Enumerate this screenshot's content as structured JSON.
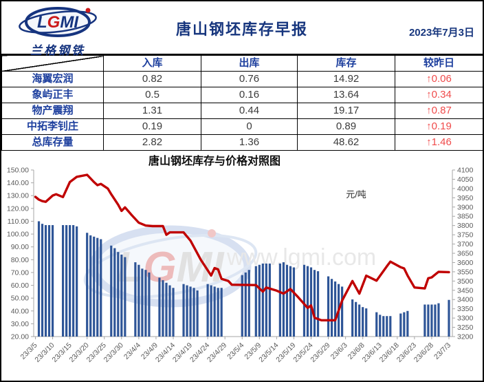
{
  "header": {
    "logo": {
      "l": "L",
      "g": "G",
      "mi": "MI",
      "sub": "兰格钢铁"
    },
    "title": "唐山钢坯库存早报",
    "date": "2023年7月3日"
  },
  "table": {
    "columns": [
      "入库",
      "出库",
      "库存",
      "较昨日"
    ],
    "rows": [
      {
        "name": "海翼宏润",
        "inbound": "0.82",
        "outbound": "0.76",
        "stock": "14.92",
        "change": "↑0.06"
      },
      {
        "name": "象屿正丰",
        "inbound": "0.5",
        "outbound": "0.16",
        "stock": "13.64",
        "change": "↑0.34"
      },
      {
        "name": "物产震翔",
        "inbound": "1.31",
        "outbound": "0.44",
        "stock": "19.17",
        "change": "↑0.87"
      },
      {
        "name": "中拓李钊庄",
        "inbound": "0.19",
        "outbound": "0",
        "stock": "0.89",
        "change": "↑0.19"
      },
      {
        "name": "总库存量",
        "inbound": "2.82",
        "outbound": "1.36",
        "stock": "48.62",
        "change": "↑1.46"
      }
    ]
  },
  "watermark": {
    "logo_l": "L",
    "logo_g": "G",
    "logo_mi": "MI",
    "url": "www.lgmi.com"
  },
  "colors": {
    "brand_blue": "#17367e",
    "table_blue": "#1d3f9e",
    "change_red": "#f04b4b",
    "bar": "#2e5597",
    "line": "#c00000",
    "axis_line": "#a6a6a6",
    "axis_text": "#595959"
  },
  "chart_data": {
    "type": "bar+line",
    "title": "唐山钢坯库存与价格对照图",
    "unit_label": "元/吨",
    "legend": "none",
    "grid": false,
    "left_axis": {
      "min": 20,
      "max": 150,
      "step": 10,
      "ticks": [
        "150.00",
        "140.00",
        "130.00",
        "120.00",
        "110.00",
        "100.00",
        "90.00",
        "80.00",
        "70.00",
        "60.00",
        "50.00",
        "40.00",
        "30.00",
        "20.00"
      ]
    },
    "right_axis": {
      "min": 3200,
      "max": 4100,
      "step": 50,
      "ticks": [
        "4100",
        "4050",
        "4000",
        "3950",
        "3900",
        "3850",
        "3800",
        "3750",
        "3700",
        "3650",
        "3600",
        "3550",
        "3500",
        "3450",
        "3400",
        "3350",
        "3300",
        "3250",
        "3200"
      ]
    },
    "x_tick_labels": [
      "23/3/5",
      "23/3/10",
      "23/3/15",
      "23/3/20",
      "23/3/25",
      "23/3/30",
      "23/4/4",
      "23/4/9",
      "23/4/14",
      "23/4/19",
      "23/4/24",
      "23/4/29",
      "23/5/4",
      "23/5/9",
      "23/5/14",
      "23/5/19",
      "23/5/24",
      "23/5/29",
      "23/6/3",
      "23/6/8",
      "23/6/13",
      "23/6/18",
      "23/6/23",
      "23/6/28",
      "23/7/3"
    ],
    "x_tick_days": [
      0,
      5,
      10,
      15,
      20,
      25,
      30,
      35,
      40,
      45,
      50,
      55,
      60,
      65,
      70,
      75,
      80,
      85,
      90,
      95,
      100,
      105,
      110,
      115,
      120
    ],
    "day_span": 121.5,
    "bars_series_name": "库存",
    "bars": [
      [
        1,
        110
      ],
      [
        2,
        108
      ],
      [
        3,
        107
      ],
      [
        4,
        107
      ],
      [
        5,
        107
      ],
      [
        8,
        107
      ],
      [
        9,
        107
      ],
      [
        10,
        107
      ],
      [
        11,
        107
      ],
      [
        12,
        106
      ],
      [
        15,
        101
      ],
      [
        16,
        99
      ],
      [
        17,
        98
      ],
      [
        18,
        97
      ],
      [
        19,
        96
      ],
      [
        22,
        91
      ],
      [
        23,
        89
      ],
      [
        24,
        86
      ],
      [
        25,
        84
      ],
      [
        26,
        82
      ],
      [
        29,
        78
      ],
      [
        30,
        76
      ],
      [
        31,
        73
      ],
      [
        32,
        72
      ],
      [
        33,
        70
      ],
      [
        36,
        66
      ],
      [
        37,
        64
      ],
      [
        38,
        62
      ],
      [
        39,
        60
      ],
      [
        40,
        58
      ],
      [
        43,
        61
      ],
      [
        44,
        60
      ],
      [
        45,
        59
      ],
      [
        46,
        58
      ],
      [
        47,
        56
      ],
      [
        50,
        61
      ],
      [
        51,
        60
      ],
      [
        52,
        59
      ],
      [
        53,
        58
      ],
      [
        54,
        58
      ],
      [
        60,
        68
      ],
      [
        61,
        70
      ],
      [
        62,
        72
      ],
      [
        64,
        75
      ],
      [
        65,
        76
      ],
      [
        66,
        77
      ],
      [
        67,
        77
      ],
      [
        68,
        77
      ],
      [
        71,
        77
      ],
      [
        72,
        78
      ],
      [
        73,
        76
      ],
      [
        74,
        75
      ],
      [
        75,
        74
      ],
      [
        78,
        76
      ],
      [
        79,
        75
      ],
      [
        80,
        74
      ],
      [
        81,
        72
      ],
      [
        82,
        71
      ],
      [
        85,
        67
      ],
      [
        86,
        65
      ],
      [
        87,
        63
      ],
      [
        88,
        61
      ],
      [
        89,
        59
      ],
      [
        92,
        49
      ],
      [
        93,
        47
      ],
      [
        94,
        45
      ],
      [
        95,
        43
      ],
      [
        96,
        42
      ],
      [
        99,
        39
      ],
      [
        100,
        37
      ],
      [
        101,
        36
      ],
      [
        102,
        36
      ],
      [
        103,
        36
      ],
      [
        106,
        38
      ],
      [
        107,
        39
      ],
      [
        108,
        40
      ],
      [
        113,
        45
      ],
      [
        114,
        45
      ],
      [
        115,
        45
      ],
      [
        116,
        45
      ],
      [
        117,
        46
      ],
      [
        120,
        48.62
      ]
    ],
    "line_series_name": "价格",
    "line": [
      [
        0,
        3955
      ],
      [
        1,
        3940
      ],
      [
        2,
        3932
      ],
      [
        3,
        3928
      ],
      [
        4,
        3945
      ],
      [
        5,
        3962
      ],
      [
        6,
        3969
      ],
      [
        8,
        3954
      ],
      [
        10,
        4035
      ],
      [
        12,
        4063
      ],
      [
        15,
        4074
      ],
      [
        17,
        4035
      ],
      [
        18,
        4018
      ],
      [
        19,
        4025
      ],
      [
        21,
        4000
      ],
      [
        22,
        3969
      ],
      [
        24,
        3913
      ],
      [
        25,
        3879
      ],
      [
        26,
        3898
      ],
      [
        28,
        3855
      ],
      [
        30,
        3815
      ],
      [
        32,
        3800
      ],
      [
        34,
        3797
      ],
      [
        37,
        3797
      ],
      [
        38,
        3750
      ],
      [
        39,
        3763
      ],
      [
        43,
        3763
      ],
      [
        45,
        3718
      ],
      [
        48,
        3615
      ],
      [
        51,
        3530
      ],
      [
        52,
        3570
      ],
      [
        53,
        3563
      ],
      [
        54,
        3512
      ],
      [
        56,
        3500
      ],
      [
        57,
        3480
      ],
      [
        64,
        3478
      ],
      [
        66,
        3443
      ],
      [
        67,
        3465
      ],
      [
        70,
        3448
      ],
      [
        72,
        3432
      ],
      [
        74,
        3457
      ],
      [
        76,
        3418
      ],
      [
        78,
        3376
      ],
      [
        79,
        3355
      ],
      [
        80,
        3368
      ],
      [
        81,
        3302
      ],
      [
        83,
        3288
      ],
      [
        87,
        3288
      ],
      [
        89,
        3394
      ],
      [
        92,
        3500
      ],
      [
        94,
        3432
      ],
      [
        96,
        3529
      ],
      [
        99,
        3502
      ],
      [
        102,
        3580
      ],
      [
        103,
        3605
      ],
      [
        106,
        3575
      ],
      [
        107,
        3568
      ],
      [
        108,
        3530
      ],
      [
        110,
        3465
      ],
      [
        113,
        3460
      ],
      [
        114,
        3515
      ],
      [
        115,
        3520
      ],
      [
        116,
        3535
      ],
      [
        117,
        3550
      ],
      [
        120,
        3548
      ]
    ]
  }
}
